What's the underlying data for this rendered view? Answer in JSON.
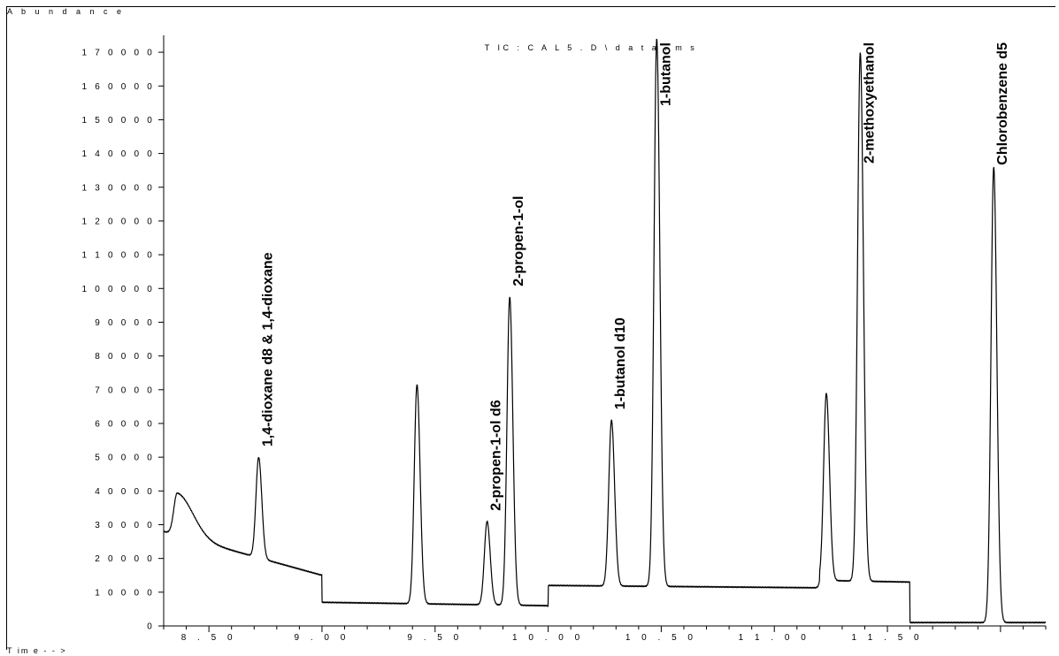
{
  "chart_data": {
    "type": "line",
    "title": "T IC : C A L 5 . D \\ d a t a . m s",
    "ylabel": "A b u n d a n c e",
    "xlabel": "T im  e - - >",
    "xlim": [
      8.3,
      12.2
    ],
    "ylim": [
      0,
      175000
    ],
    "x_ticks": [
      8.5,
      9.0,
      9.5,
      10.0,
      10.5,
      11.0,
      11.5
    ],
    "x_tick_labels": [
      "8 . 5 0",
      "9 . 0 0",
      "9 . 5 0",
      "1 0 . 0 0",
      "1 0 . 5 0",
      "1 1 . 0 0",
      "1 1 . 5 0"
    ],
    "y_ticks": [
      0,
      10000,
      20000,
      30000,
      40000,
      50000,
      60000,
      70000,
      80000,
      90000,
      100000,
      110000,
      120000,
      130000,
      140000,
      150000,
      160000,
      170000
    ],
    "y_tick_labels": [
      "0",
      "1 0 0 0 0",
      "2 0 0 0 0",
      "3 0 0 0 0",
      "4 0 0 0 0",
      "5 0 0 0 0",
      "6 0 0 0 0",
      "7 0 0 0 0",
      "8 0 0 0 0",
      "9 0 0 0 0",
      "1 0 0 0 0 0",
      "1 1 0 0 0 0",
      "1 2 0 0 0 0",
      "1 3 0 0 0 0",
      "1 4 0 0 0 0",
      "1 5 0 0 0 0",
      "1 6 0 0 0 0",
      "1 7 0 0 0 0"
    ],
    "grid": false,
    "segments": [
      {
        "x_start": 8.3,
        "x_end": 9.0,
        "baseline": [
          28000,
          15000
        ]
      },
      {
        "x_start": 9.0,
        "x_end": 10.0,
        "baseline": [
          7000,
          6000
        ]
      },
      {
        "x_start": 10.0,
        "x_end": 11.2,
        "baseline": [
          12000,
          11300
        ]
      },
      {
        "x_start": 11.2,
        "x_end": 11.6,
        "baseline": [
          13500,
          13000
        ]
      },
      {
        "x_start": 11.6,
        "x_end": 12.2,
        "baseline": [
          1000,
          1000
        ]
      }
    ],
    "peaks": [
      {
        "x": 8.36,
        "y": 40500,
        "label": ""
      },
      {
        "x": 8.72,
        "y": 50000,
        "label": "1,4-dioxane d8 & 1,4-dioxane"
      },
      {
        "x": 9.42,
        "y": 71500,
        "label": ""
      },
      {
        "x": 9.73,
        "y": 31000,
        "label": "2-propen-1-ol d6"
      },
      {
        "x": 9.83,
        "y": 97500,
        "label": "2-propen-1-ol"
      },
      {
        "x": 10.28,
        "y": 61000,
        "label": "1-butanol d10"
      },
      {
        "x": 10.48,
        "y": 174000,
        "label": "1-butanol"
      },
      {
        "x": 11.23,
        "y": 69000,
        "label": ""
      },
      {
        "x": 11.38,
        "y": 170000,
        "label": "2-methoxyethanol"
      },
      {
        "x": 11.97,
        "y": 136000,
        "label": "Chlorobenzene d5"
      }
    ]
  }
}
